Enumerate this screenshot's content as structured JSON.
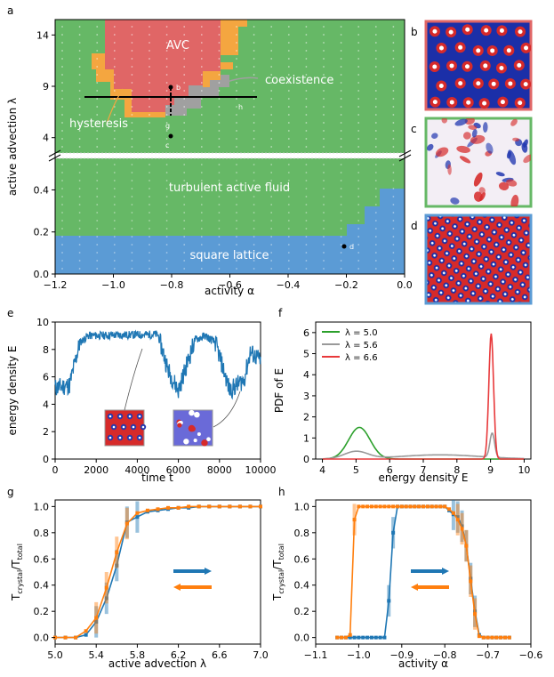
{
  "colors": {
    "green": "#66b866",
    "red": "#e06666",
    "orange": "#f4a640",
    "gray": "#a0a0a0",
    "blue": "#5b9bd5",
    "plot_blue": "#1f77b4",
    "plot_orange": "#ff7f0e",
    "pdf_green": "#2ca02c",
    "pdf_gray": "#999999",
    "pdf_red": "#e8393b"
  },
  "chart_data": [
    {
      "panel": "a",
      "type": "heatmap",
      "xlabel": "activity α",
      "ylabel": "active advection λ",
      "xlim": [
        -1.2,
        0.0
      ],
      "ylim_upper": [
        2.5,
        15.5
      ],
      "ylim_lower": [
        0.0,
        0.55
      ],
      "xticks": [
        "−1.2",
        "−1.0",
        "−0.8",
        "−0.6",
        "−0.4",
        "−0.2",
        "0.0"
      ],
      "yticks_upper": [
        "4",
        "9",
        "14"
      ],
      "yticks_lower": [
        "0.0",
        "0.2",
        "0.4"
      ],
      "regions": [
        "AVC",
        "coexistence",
        "hysteresis",
        "turbulent active fluid",
        "square lattice"
      ],
      "markers": [
        "b",
        "c",
        "d"
      ],
      "cut_labels": [
        "g",
        "h"
      ]
    },
    {
      "panel": "e",
      "type": "line",
      "xlabel": "time t",
      "ylabel": "energy density E",
      "xlim": [
        0,
        10000
      ],
      "ylim": [
        0,
        10
      ],
      "xticks": [
        "0",
        "2000",
        "4000",
        "6000",
        "8000",
        "10000"
      ],
      "yticks": [
        "0",
        "2",
        "4",
        "6",
        "8",
        "10"
      ],
      "segments": [
        [
          0,
          5.2
        ],
        [
          700,
          5.4
        ],
        [
          1200,
          8.5
        ],
        [
          1600,
          9.0
        ],
        [
          5000,
          9.1
        ],
        [
          5500,
          6.5
        ],
        [
          6000,
          5.0
        ],
        [
          6800,
          8.7
        ],
        [
          7300,
          9.0
        ],
        [
          7800,
          8.5
        ],
        [
          8500,
          5.0
        ],
        [
          9200,
          5.8
        ],
        [
          9500,
          7.8
        ],
        [
          10000,
          7.2
        ]
      ]
    },
    {
      "panel": "f",
      "type": "line",
      "xlabel": "energy density E",
      "ylabel": "PDF of E",
      "xlim": [
        3.8,
        10.2
      ],
      "ylim": [
        0,
        6.5
      ],
      "xticks": [
        "4",
        "5",
        "6",
        "7",
        "8",
        "9",
        "10"
      ],
      "yticks": [
        "0",
        "1",
        "2",
        "3",
        "4",
        "5",
        "6"
      ],
      "series": [
        {
          "name": "λ = 5.0",
          "peaks": [
            [
              5.1,
              1.5,
              0.32
            ]
          ]
        },
        {
          "name": "λ = 5.6",
          "peaks": [
            [
              5.0,
              0.35,
              0.35
            ],
            [
              7.5,
              0.2,
              1.2
            ],
            [
              9.05,
              1.15,
              0.07
            ]
          ]
        },
        {
          "name": "λ = 6.6",
          "peaks": [
            [
              9.02,
              5.95,
              0.07
            ]
          ]
        }
      ]
    },
    {
      "panel": "g",
      "type": "line",
      "xlabel": "active advection λ",
      "ylabel": "T_crystal / T_total",
      "xlim": [
        5.0,
        7.0
      ],
      "ylim": [
        -0.05,
        1.05
      ],
      "xticks": [
        "5.0",
        "5.4",
        "5.8",
        "6.2",
        "6.6",
        "7.0"
      ],
      "yticks": [
        "0.0",
        "0.2",
        "0.4",
        "0.6",
        "0.8",
        "1.0"
      ],
      "x": [
        5.0,
        5.1,
        5.2,
        5.3,
        5.4,
        5.5,
        5.6,
        5.7,
        5.8,
        5.9,
        6.0,
        6.1,
        6.2,
        6.3,
        6.4,
        6.5,
        6.6,
        6.7,
        6.8,
        6.9,
        7.0
      ],
      "series": [
        {
          "name": "increasing",
          "values": [
            0.0,
            0.0,
            0.0,
            0.02,
            0.12,
            0.3,
            0.55,
            0.88,
            0.92,
            0.96,
            0.97,
            0.98,
            0.99,
            0.99,
            1.0,
            1.0,
            1.0,
            1.0,
            1.0,
            1.0,
            1.0
          ]
        },
        {
          "name": "decreasing",
          "values": [
            0.0,
            0.0,
            0.0,
            0.05,
            0.15,
            0.38,
            0.65,
            0.87,
            0.95,
            0.97,
            0.98,
            0.99,
            0.99,
            1.0,
            1.0,
            1.0,
            1.0,
            1.0,
            1.0,
            1.0,
            1.0
          ]
        }
      ]
    },
    {
      "panel": "h",
      "type": "line",
      "xlabel": "activity α",
      "ylabel": "T_crystal / T_total",
      "xlim": [
        -1.1,
        -0.6
      ],
      "ylim": [
        -0.05,
        1.05
      ],
      "xticks": [
        "−1.1",
        "−1.0",
        "−0.9",
        "−0.8",
        "−0.7",
        "−0.6"
      ],
      "yticks": [
        "0.0",
        "0.2",
        "0.4",
        "0.6",
        "0.8",
        "1.0"
      ],
      "x": [
        -1.05,
        -1.04,
        -1.03,
        -1.02,
        -1.01,
        -1.0,
        -0.99,
        -0.98,
        -0.97,
        -0.96,
        -0.95,
        -0.94,
        -0.93,
        -0.92,
        -0.91,
        -0.9,
        -0.89,
        -0.88,
        -0.87,
        -0.86,
        -0.85,
        -0.84,
        -0.83,
        -0.82,
        -0.81,
        -0.8,
        -0.79,
        -0.78,
        -0.77,
        -0.76,
        -0.75,
        -0.74,
        -0.73,
        -0.72,
        -0.71,
        -0.7,
        -0.69,
        -0.68,
        -0.67,
        -0.66,
        -0.65
      ],
      "series": [
        {
          "name": "increasing",
          "values": [
            0,
            0,
            0,
            0,
            0,
            0,
            0,
            0,
            0,
            0,
            0,
            0,
            0.28,
            0.8,
            1.0,
            1.0,
            1.0,
            1.0,
            1.0,
            1.0,
            1.0,
            1.0,
            1.0,
            1.0,
            1.0,
            1.0,
            0.97,
            0.94,
            0.92,
            0.85,
            0.7,
            0.45,
            0.2,
            0.02,
            0,
            0,
            0,
            0,
            0,
            0,
            0
          ]
        },
        {
          "name": "decreasing",
          "values": [
            0,
            0,
            0,
            0.02,
            0.9,
            1.0,
            1.0,
            1.0,
            1.0,
            1.0,
            1.0,
            1.0,
            1.0,
            1.0,
            1.0,
            1.0,
            1.0,
            1.0,
            1.0,
            1.0,
            1.0,
            1.0,
            1.0,
            1.0,
            1.0,
            1.0,
            0.98,
            0.95,
            0.9,
            0.83,
            0.7,
            0.43,
            0.18,
            0.01,
            0,
            0,
            0,
            0,
            0,
            0,
            0
          ]
        }
      ]
    }
  ],
  "panel_labels": [
    "a",
    "b",
    "c",
    "d",
    "e",
    "f",
    "g",
    "h"
  ]
}
